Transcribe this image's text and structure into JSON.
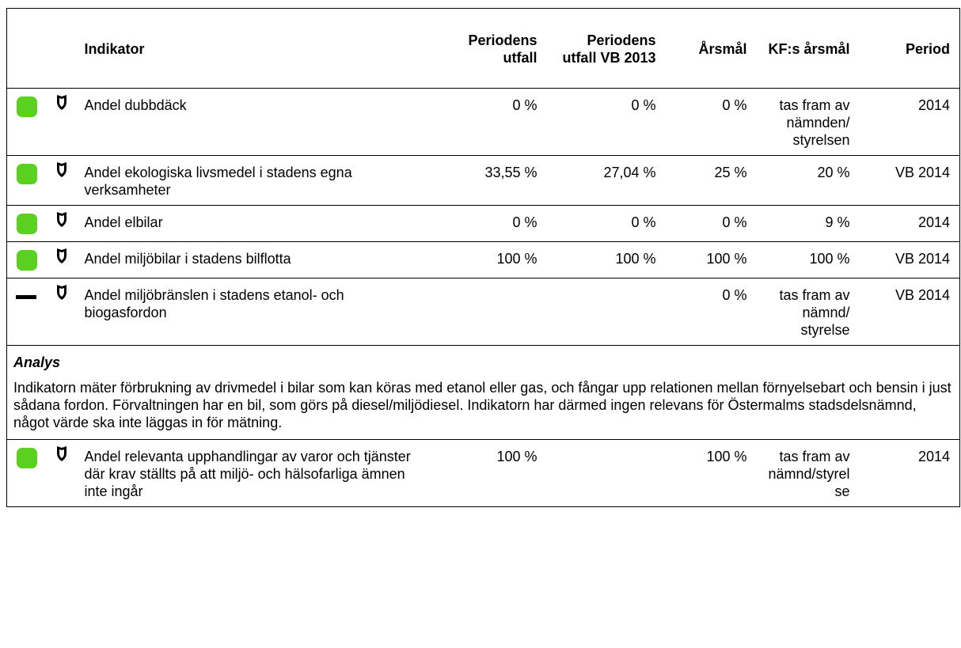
{
  "table": {
    "header": [
      "Indikator",
      "Periodens utfall",
      "Periodens utfall VB 2013",
      "Årsmål",
      "KF:s årsmål",
      "Period"
    ],
    "rows": [
      {
        "status": "green",
        "cells": [
          "Andel dubbdäck",
          "0 %",
          "0 %",
          "0 %",
          "tas fram av nämnden/ styrelsen",
          "2014"
        ]
      },
      {
        "status": "green",
        "cells": [
          "Andel ekologiska livsmedel i stadens egna verksamheter",
          "33,55 %",
          "27,04 %",
          "25 %",
          "20 %",
          "VB 2014"
        ]
      },
      {
        "status": "green",
        "cells": [
          "Andel elbilar",
          "0 %",
          "0 %",
          "0 %",
          "9 %",
          "2014"
        ]
      },
      {
        "status": "green",
        "cells": [
          "Andel miljöbilar i stadens bilflotta",
          "100 %",
          "100 %",
          "100 %",
          "100 %",
          "VB 2014"
        ]
      },
      {
        "status": "dash",
        "cells": [
          "Andel miljöbränslen i stadens etanol- och biogasfordon",
          null,
          null,
          "0 %",
          "tas fram av nämnd/ styrelse",
          "VB 2014"
        ],
        "analysis": {
          "heading": "Analys",
          "text": "Indikatorn mäter förbrukning av drivmedel i bilar som kan köras med etanol eller gas, och fångar upp relationen mellan förnyelsebart och bensin i just sådana fordon. Förvaltningen har en bil, som görs på diesel/miljödiesel. Indikatorn har därmed ingen relevans för Östermalms stadsdelsnämnd, något värde ska inte läggas in för mätning."
        }
      },
      {
        "status": "green",
        "cells": [
          "Andel relevanta upphandlingar av varor och tjänster där krav ställts på att miljö- och hälsofarliga ämnen inte ingår",
          "100 %",
          null,
          "100 %",
          "tas fram av nämnd/styrelse",
          "2014"
        ]
      }
    ]
  }
}
